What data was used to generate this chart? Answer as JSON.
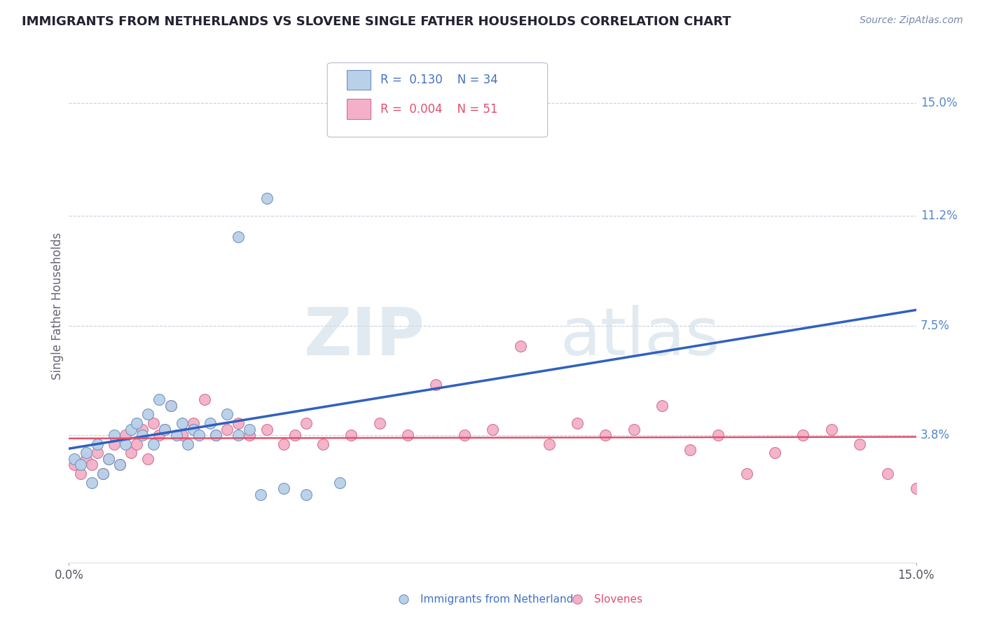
{
  "title": "IMMIGRANTS FROM NETHERLANDS VS SLOVENE SINGLE FATHER HOUSEHOLDS CORRELATION CHART",
  "source": "Source: ZipAtlas.com",
  "ylabel": "Single Father Households",
  "yticks": [
    0.038,
    0.075,
    0.112,
    0.15
  ],
  "ytick_labels": [
    "3.8%",
    "7.5%",
    "11.2%",
    "15.0%"
  ],
  "xlim": [
    0.0,
    0.15
  ],
  "ylim": [
    -0.005,
    0.168
  ],
  "legend1_r": "0.130",
  "legend1_n": "34",
  "legend2_r": "0.004",
  "legend2_n": "51",
  "color_blue": "#b8d0e8",
  "color_pink": "#f4b0c8",
  "color_blue_line": "#3060c0",
  "color_pink_line": "#e05070",
  "color_blue_border": "#7090c0",
  "color_pink_border": "#d07090",
  "blue_scatter_x": [
    0.001,
    0.002,
    0.003,
    0.004,
    0.005,
    0.006,
    0.007,
    0.008,
    0.009,
    0.01,
    0.011,
    0.012,
    0.013,
    0.014,
    0.015,
    0.016,
    0.017,
    0.018,
    0.019,
    0.02,
    0.021,
    0.022,
    0.023,
    0.025,
    0.026,
    0.028,
    0.03,
    0.032,
    0.034,
    0.038,
    0.042,
    0.048,
    0.03,
    0.035
  ],
  "blue_scatter_y": [
    0.03,
    0.028,
    0.032,
    0.022,
    0.035,
    0.025,
    0.03,
    0.038,
    0.028,
    0.035,
    0.04,
    0.042,
    0.038,
    0.045,
    0.035,
    0.05,
    0.04,
    0.048,
    0.038,
    0.042,
    0.035,
    0.04,
    0.038,
    0.042,
    0.038,
    0.045,
    0.038,
    0.04,
    0.018,
    0.02,
    0.018,
    0.022,
    0.105,
    0.118
  ],
  "pink_scatter_x": [
    0.001,
    0.002,
    0.003,
    0.004,
    0.005,
    0.006,
    0.007,
    0.008,
    0.009,
    0.01,
    0.011,
    0.012,
    0.013,
    0.014,
    0.015,
    0.016,
    0.017,
    0.018,
    0.02,
    0.022,
    0.024,
    0.026,
    0.028,
    0.03,
    0.032,
    0.035,
    0.038,
    0.04,
    0.042,
    0.045,
    0.05,
    0.055,
    0.06,
    0.065,
    0.07,
    0.075,
    0.08,
    0.085,
    0.09,
    0.095,
    0.1,
    0.105,
    0.11,
    0.115,
    0.12,
    0.125,
    0.13,
    0.135,
    0.14,
    0.145,
    0.15
  ],
  "pink_scatter_y": [
    0.028,
    0.025,
    0.03,
    0.028,
    0.032,
    0.025,
    0.03,
    0.035,
    0.028,
    0.038,
    0.032,
    0.035,
    0.04,
    0.03,
    0.042,
    0.038,
    0.04,
    0.048,
    0.038,
    0.042,
    0.05,
    0.038,
    0.04,
    0.042,
    0.038,
    0.04,
    0.035,
    0.038,
    0.042,
    0.035,
    0.038,
    0.042,
    0.038,
    0.055,
    0.038,
    0.04,
    0.068,
    0.035,
    0.042,
    0.038,
    0.04,
    0.048,
    0.033,
    0.038,
    0.025,
    0.032,
    0.038,
    0.04,
    0.035,
    0.025,
    0.02
  ]
}
